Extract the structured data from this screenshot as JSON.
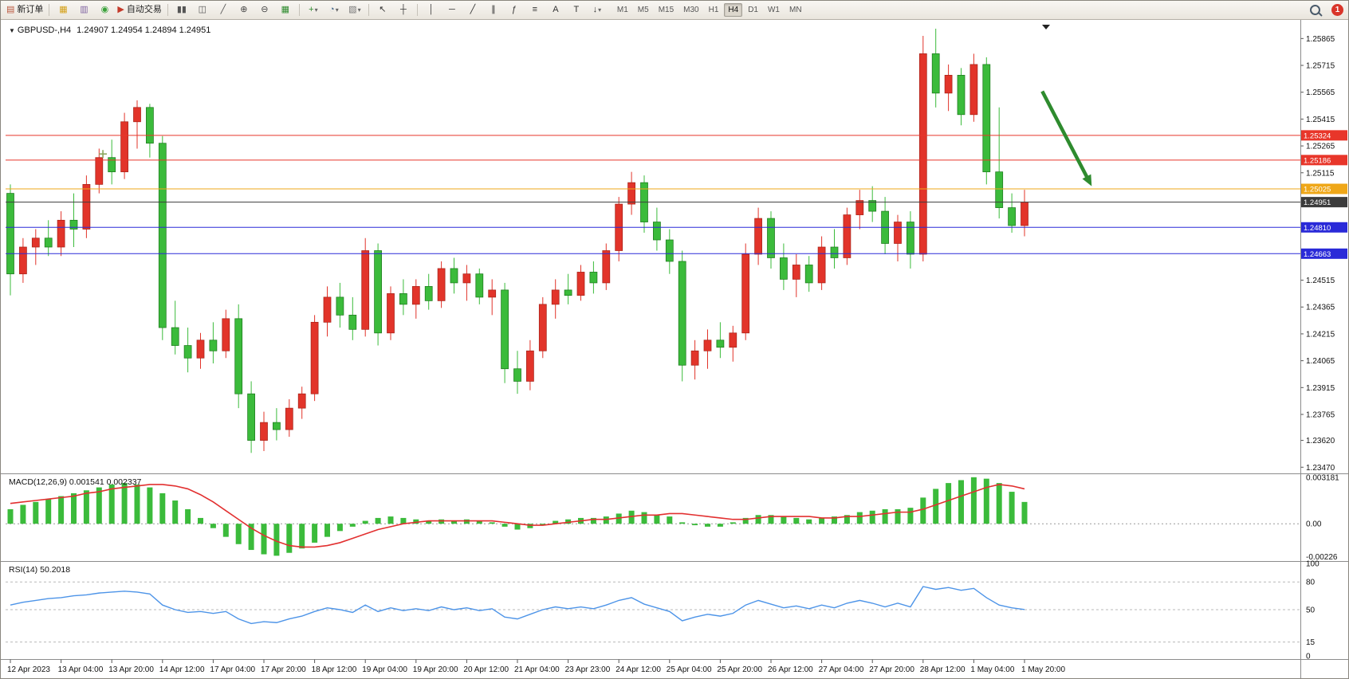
{
  "toolbar": {
    "items": [
      {
        "type": "button",
        "name": "new-order-button",
        "glyph": "▤",
        "glyph_color": "#b9543a",
        "label": "新订单"
      },
      {
        "type": "sep"
      },
      {
        "type": "button",
        "name": "charts-window-icon",
        "glyph": "▦",
        "glyph_color": "#d4a017"
      },
      {
        "type": "button",
        "name": "data-window-icon",
        "glyph": "▥",
        "glyph_color": "#8064a2"
      },
      {
        "type": "button",
        "name": "navigator-icon",
        "glyph": "◉",
        "glyph_color": "#3aa13a"
      },
      {
        "type": "button",
        "name": "auto-trading-button",
        "glyph": "▶",
        "glyph_color": "#c43a2a",
        "label": "自动交易"
      },
      {
        "type": "sep"
      },
      {
        "type": "button",
        "name": "bar-chart-mode-button",
        "glyph": "▮▮",
        "glyph_color": "#555555"
      },
      {
        "type": "button",
        "name": "candle-chart-mode-button",
        "glyph": "◫",
        "glyph_color": "#555555"
      },
      {
        "type": "button",
        "name": "line-chart-mode-button",
        "glyph": "╱",
        "glyph_color": "#555555"
      },
      {
        "type": "button",
        "name": "zoom-in-button",
        "glyph": "⊕",
        "glyph_color": "#444444"
      },
      {
        "type": "button",
        "name": "zoom-out-button",
        "glyph": "⊖",
        "glyph_color": "#444444"
      },
      {
        "type": "button",
        "name": "tile-windows-button",
        "glyph": "▦",
        "glyph_color": "#2e8b2e"
      },
      {
        "type": "sep"
      },
      {
        "type": "button",
        "name": "indicators-button",
        "glyph": "+",
        "glyph_color": "#2e8b2e",
        "dropdown": true
      },
      {
        "type": "button",
        "name": "periods-button",
        "glyph": "◔",
        "glyph_color": "#446688",
        "dropdown": true
      },
      {
        "type": "button",
        "name": "templates-button",
        "glyph": "▧",
        "glyph_color": "#777777",
        "dropdown": true
      },
      {
        "type": "sep"
      },
      {
        "type": "button",
        "name": "cursor-button",
        "glyph": "↖",
        "glyph_color": "#333333"
      },
      {
        "type": "button",
        "name": "crosshair-button",
        "glyph": "┼",
        "glyph_color": "#333333"
      },
      {
        "type": "sep"
      },
      {
        "type": "button",
        "name": "vertical-line-button",
        "glyph": "│",
        "glyph_color": "#333333"
      },
      {
        "type": "button",
        "name": "horizontal-line-button",
        "glyph": "─",
        "glyph_color": "#333333"
      },
      {
        "type": "button",
        "name": "trendline-button",
        "glyph": "╱",
        "glyph_color": "#333333"
      },
      {
        "type": "button",
        "name": "channel-button",
        "glyph": "∥",
        "glyph_color": "#333333"
      },
      {
        "type": "button",
        "name": "fibonacci-button",
        "glyph": "ƒ",
        "glyph_color": "#333333"
      },
      {
        "type": "button",
        "name": "shapes-button",
        "glyph": "≡",
        "glyph_color": "#333333"
      },
      {
        "type": "button",
        "name": "text-button",
        "glyph": "A",
        "glyph_color": "#333333"
      },
      {
        "type": "button",
        "name": "text-label-button",
        "glyph": "T",
        "glyph_color": "#333333"
      },
      {
        "type": "button",
        "name": "arrow-objects-button",
        "glyph": "↓",
        "glyph_color": "#333333",
        "dropdown": true
      }
    ],
    "timeframes": {
      "labels": [
        "M1",
        "M5",
        "M15",
        "M30",
        "H1",
        "H4",
        "D1",
        "W1",
        "MN"
      ],
      "active": "H4"
    },
    "notification_count": "1"
  },
  "chart": {
    "symbol_title": "GBPUSD-,H4",
    "ohlc": "1.24907  1.24954  1.24894  1.24951",
    "scroll_marker": "▼"
  },
  "indicators": {
    "macd_label": "MACD(12,26,9)",
    "macd_values": "0.001541 0.002337",
    "rsi_label": "RSI(14)",
    "rsi_value": "50.2018"
  },
  "price_axis": {
    "ticks": [
      "1.25865",
      "1.25715",
      "1.25565",
      "1.25415",
      "1.25265",
      "1.25115",
      "1.24515",
      "1.24365",
      "1.24215",
      "1.24065",
      "1.23915",
      "1.23765",
      "1.23620",
      "1.23470"
    ]
  },
  "time_axis": {
    "labels": [
      "12 Apr 2023",
      "13 Apr 04:00",
      "13 Apr 20:00",
      "14 Apr 12:00",
      "17 Apr 04:00",
      "17 Apr 20:00",
      "18 Apr 12:00",
      "19 Apr 04:00",
      "19 Apr 20:00",
      "20 Apr 12:00",
      "21 Apr 04:00",
      "23 Apr 23:00",
      "24 Apr 12:00",
      "25 Apr 04:00",
      "25 Apr 20:00",
      "26 Apr 12:00",
      "27 Apr 04:00",
      "27 Apr 20:00",
      "28 Apr 12:00",
      "1 May 04:00",
      "1 May 20:00"
    ],
    "label_every": 4
  },
  "chart_data": [
    {
      "type": "candlestick",
      "title": "GBPUSD- H4",
      "ylim": [
        1.2344,
        1.2596
      ],
      "up_color": "#e2342a",
      "down_color": "#3bbb3b",
      "current": {
        "open": 1.24907,
        "high": 1.24954,
        "low": 1.24894,
        "close": 1.24951
      },
      "levels": [
        {
          "price": 1.25324,
          "label": "1.25324",
          "color": "#e8362a"
        },
        {
          "price": 1.25186,
          "label": "1.25186",
          "color": "#e8362a"
        },
        {
          "price": 1.25025,
          "label": "1.25025",
          "color": "#efa718"
        },
        {
          "price": 1.24951,
          "label": "1.24951",
          "color": "#3c3c3c",
          "current": true
        },
        {
          "price": 1.2481,
          "label": "1.24810",
          "color": "#2a2ad8"
        },
        {
          "price": 1.24663,
          "label": "1.24663",
          "color": "#2a2ad8"
        }
      ],
      "annotations": [
        {
          "type": "arrow",
          "from": [
            81.4,
            1.2557
          ],
          "to": [
            85.3,
            1.2504
          ],
          "color": "#2e8b2e"
        },
        {
          "type": "cross",
          "at": [
            7.3,
            1.2522
          ],
          "color": "#8aa65a"
        }
      ],
      "candles": [
        [
          1.25,
          1.2505,
          1.2443,
          1.2455
        ],
        [
          1.2455,
          1.2475,
          1.245,
          1.247
        ],
        [
          1.247,
          1.248,
          1.246,
          1.2475
        ],
        [
          1.2475,
          1.2485,
          1.2465,
          1.247
        ],
        [
          1.247,
          1.249,
          1.2465,
          1.2485
        ],
        [
          1.2485,
          1.25,
          1.247,
          1.248
        ],
        [
          1.248,
          1.251,
          1.2475,
          1.2505
        ],
        [
          1.2505,
          1.2525,
          1.25,
          1.252
        ],
        [
          1.252,
          1.253,
          1.2505,
          1.2512
        ],
        [
          1.2512,
          1.2545,
          1.2508,
          1.254
        ],
        [
          1.254,
          1.2552,
          1.2525,
          1.2548
        ],
        [
          1.2548,
          1.255,
          1.252,
          1.2528
        ],
        [
          1.2528,
          1.2532,
          1.2418,
          1.2425
        ],
        [
          1.2425,
          1.244,
          1.241,
          1.2415
        ],
        [
          1.2415,
          1.2425,
          1.24,
          1.2408
        ],
        [
          1.2408,
          1.2422,
          1.2402,
          1.2418
        ],
        [
          1.2418,
          1.2428,
          1.2405,
          1.2412
        ],
        [
          1.2412,
          1.2435,
          1.2408,
          1.243
        ],
        [
          1.243,
          1.2438,
          1.238,
          1.2388
        ],
        [
          1.2388,
          1.2395,
          1.2355,
          1.2362
        ],
        [
          1.2362,
          1.2378,
          1.2356,
          1.2372
        ],
        [
          1.2372,
          1.238,
          1.2362,
          1.2368
        ],
        [
          1.2368,
          1.2385,
          1.2364,
          1.238
        ],
        [
          1.238,
          1.2392,
          1.2374,
          1.2388
        ],
        [
          1.2388,
          1.2432,
          1.2384,
          1.2428
        ],
        [
          1.2428,
          1.2448,
          1.242,
          1.2442
        ],
        [
          1.2442,
          1.245,
          1.2425,
          1.2432
        ],
        [
          1.2432,
          1.2442,
          1.2418,
          1.2424
        ],
        [
          1.2424,
          1.2475,
          1.242,
          1.2468
        ],
        [
          1.2468,
          1.2472,
          1.2415,
          1.2422
        ],
        [
          1.2422,
          1.2448,
          1.2418,
          1.2444
        ],
        [
          1.2444,
          1.2452,
          1.2432,
          1.2438
        ],
        [
          1.2438,
          1.2452,
          1.243,
          1.2448
        ],
        [
          1.2448,
          1.2455,
          1.2435,
          1.244
        ],
        [
          1.244,
          1.2462,
          1.2436,
          1.2458
        ],
        [
          1.2458,
          1.2464,
          1.2444,
          1.245
        ],
        [
          1.245,
          1.246,
          1.244,
          1.2455
        ],
        [
          1.2455,
          1.2458,
          1.2438,
          1.2442
        ],
        [
          1.2442,
          1.2452,
          1.2432,
          1.2446
        ],
        [
          1.2446,
          1.245,
          1.2394,
          1.2402
        ],
        [
          1.2402,
          1.2412,
          1.2388,
          1.2395
        ],
        [
          1.2395,
          1.2418,
          1.239,
          1.2412
        ],
        [
          1.2412,
          1.2442,
          1.2408,
          1.2438
        ],
        [
          1.2438,
          1.2452,
          1.243,
          1.2446
        ],
        [
          1.2446,
          1.2455,
          1.2438,
          1.2443
        ],
        [
          1.2443,
          1.246,
          1.244,
          1.2456
        ],
        [
          1.2456,
          1.2462,
          1.2444,
          1.245
        ],
        [
          1.245,
          1.2472,
          1.2446,
          1.2468
        ],
        [
          1.2468,
          1.2498,
          1.2462,
          1.2494
        ],
        [
          1.2494,
          1.2512,
          1.2488,
          1.2506
        ],
        [
          1.2506,
          1.251,
          1.2478,
          1.2484
        ],
        [
          1.2484,
          1.2492,
          1.2468,
          1.2474
        ],
        [
          1.2474,
          1.248,
          1.2455,
          1.2462
        ],
        [
          1.2462,
          1.2468,
          1.2395,
          1.2404
        ],
        [
          1.2404,
          1.2418,
          1.2396,
          1.2412
        ],
        [
          1.2412,
          1.2424,
          1.2402,
          1.2418
        ],
        [
          1.2418,
          1.2428,
          1.2408,
          1.2414
        ],
        [
          1.2414,
          1.2426,
          1.2406,
          1.2422
        ],
        [
          1.2422,
          1.2472,
          1.2418,
          1.2466
        ],
        [
          1.2466,
          1.2492,
          1.246,
          1.2486
        ],
        [
          1.2486,
          1.249,
          1.2458,
          1.2464
        ],
        [
          1.2464,
          1.2472,
          1.2446,
          1.2452
        ],
        [
          1.2452,
          1.2466,
          1.2442,
          1.246
        ],
        [
          1.246,
          1.2465,
          1.2445,
          1.245
        ],
        [
          1.245,
          1.2476,
          1.2446,
          1.247
        ],
        [
          1.247,
          1.248,
          1.2458,
          1.2464
        ],
        [
          1.2464,
          1.2492,
          1.246,
          1.2488
        ],
        [
          1.2488,
          1.2502,
          1.248,
          1.2496
        ],
        [
          1.2496,
          1.2504,
          1.2484,
          1.249
        ],
        [
          1.249,
          1.2498,
          1.2466,
          1.2472
        ],
        [
          1.2472,
          1.2488,
          1.2462,
          1.2484
        ],
        [
          1.2484,
          1.249,
          1.2458,
          1.2466
        ],
        [
          1.2466,
          1.2588,
          1.2462,
          1.2578
        ],
        [
          1.2578,
          1.2592,
          1.2548,
          1.2556
        ],
        [
          1.2556,
          1.2572,
          1.2546,
          1.2566
        ],
        [
          1.2566,
          1.257,
          1.2538,
          1.2544
        ],
        [
          1.2544,
          1.2578,
          1.254,
          1.2572
        ],
        [
          1.2572,
          1.2576,
          1.2505,
          1.2512
        ],
        [
          1.2512,
          1.2548,
          1.2486,
          1.2492
        ],
        [
          1.2492,
          1.25,
          1.2478,
          1.2482
        ],
        [
          1.2482,
          1.2502,
          1.2476,
          1.24951
        ]
      ]
    },
    {
      "type": "bar",
      "name": "MACD(12,26,9)",
      "ylim": [
        -0.0024,
        0.0033
      ],
      "axis_labels": [
        "0.003181",
        "0.00",
        "-0.00226"
      ],
      "histogram_color": "#3bbb3b",
      "signal_color": "#e23030",
      "histogram": [
        0.001,
        0.0013,
        0.0015,
        0.0017,
        0.0019,
        0.0021,
        0.0023,
        0.0025,
        0.0027,
        0.0028,
        0.0027,
        0.0025,
        0.0021,
        0.0016,
        0.001,
        0.0004,
        -0.0003,
        -0.0009,
        -0.0014,
        -0.0018,
        -0.0021,
        -0.0022,
        -0.002,
        -0.0017,
        -0.0013,
        -0.0009,
        -0.0005,
        -0.0002,
        0.0002,
        0.0004,
        0.0005,
        0.0004,
        0.0003,
        0.0002,
        0.0003,
        0.0002,
        0.0003,
        0.0002,
        0.0001,
        -0.0002,
        -0.0004,
        -0.0003,
        -0.0001,
        0.0002,
        0.0003,
        0.0004,
        0.0004,
        0.0005,
        0.0007,
        0.0009,
        0.0008,
        0.0006,
        0.0005,
        0.0001,
        -0.0001,
        -0.0002,
        -0.0002,
        0.0001,
        0.0004,
        0.0006,
        0.0006,
        0.0005,
        0.0004,
        0.0003,
        0.0004,
        0.0005,
        0.0006,
        0.0008,
        0.0009,
        0.001,
        0.001,
        0.0011,
        0.0018,
        0.0024,
        0.0028,
        0.003,
        0.0032,
        0.0031,
        0.0028,
        0.0022,
        0.0015
      ],
      "signal": [
        0.0014,
        0.0015,
        0.0016,
        0.0017,
        0.0018,
        0.0019,
        0.0021,
        0.0022,
        0.0024,
        0.0025,
        0.0026,
        0.0027,
        0.0027,
        0.0026,
        0.0024,
        0.002,
        0.0015,
        0.0009,
        0.0003,
        -0.0003,
        -0.0008,
        -0.0012,
        -0.0015,
        -0.0016,
        -0.0016,
        -0.0015,
        -0.0013,
        -0.001,
        -0.0007,
        -0.0004,
        -0.0002,
        0.0,
        0.0001,
        0.0002,
        0.0002,
        0.0002,
        0.0002,
        0.0002,
        0.0002,
        0.0001,
        0.0,
        -0.0001,
        -0.0001,
        0.0,
        0.0001,
        0.0002,
        0.0003,
        0.0003,
        0.0004,
        0.0005,
        0.0006,
        0.0006,
        0.0007,
        0.0007,
        0.0006,
        0.0005,
        0.0004,
        0.0003,
        0.0003,
        0.0004,
        0.0005,
        0.0005,
        0.0005,
        0.0005,
        0.0004,
        0.0004,
        0.0005,
        0.0005,
        0.0006,
        0.0007,
        0.0008,
        0.0008,
        0.001,
        0.0013,
        0.0016,
        0.0019,
        0.0022,
        0.0025,
        0.0027,
        0.0026,
        0.0024
      ]
    },
    {
      "type": "line",
      "name": "RSI(14)",
      "ylim": [
        0,
        100
      ],
      "levels": [
        80,
        50,
        15
      ],
      "axis_labels": [
        "100",
        "80",
        "50",
        "15",
        "0"
      ],
      "color": "#4d94e8",
      "values": [
        55,
        58,
        60,
        62,
        63,
        65,
        66,
        68,
        69,
        70,
        69,
        67,
        55,
        50,
        47,
        48,
        46,
        48,
        40,
        35,
        37,
        36,
        40,
        43,
        48,
        52,
        50,
        47,
        55,
        48,
        52,
        49,
        51,
        49,
        53,
        50,
        52,
        49,
        51,
        42,
        40,
        45,
        50,
        53,
        51,
        53,
        51,
        55,
        60,
        63,
        56,
        52,
        48,
        38,
        42,
        45,
        43,
        46,
        55,
        60,
        56,
        52,
        54,
        51,
        55,
        52,
        57,
        60,
        57,
        53,
        57,
        53,
        75,
        72,
        74,
        71,
        73,
        63,
        55,
        52,
        50.2
      ]
    }
  ]
}
